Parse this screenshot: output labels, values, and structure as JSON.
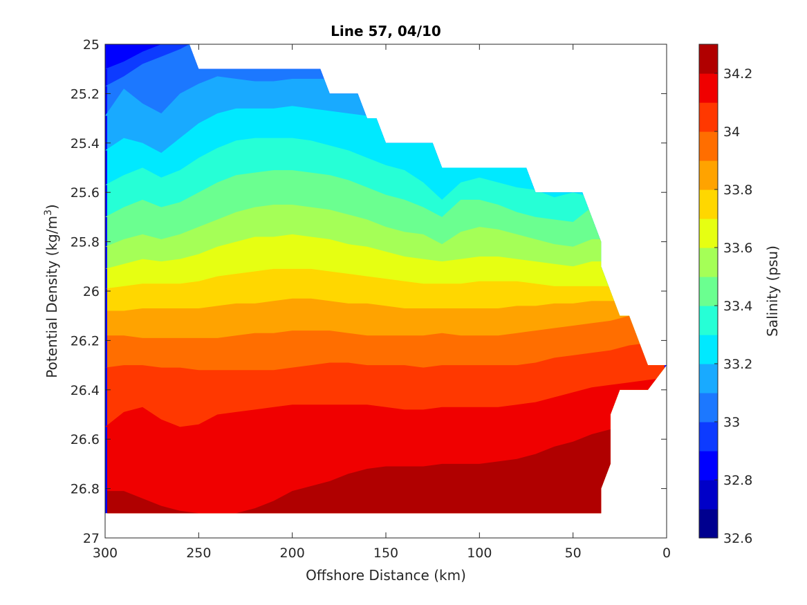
{
  "chart_data": {
    "type": "filled-contour",
    "title": "Line 57, 04/10",
    "xlabel": "Offshore Distance (km)",
    "ylabel_main": "Potential Density (kg/m",
    "ylabel_sup": "3",
    "ylabel_end": ")",
    "xlim": [
      0,
      300
    ],
    "x_reversed": true,
    "ylim": [
      25,
      27
    ],
    "y_reversed": true,
    "x_ticks": [
      300,
      250,
      200,
      150,
      100,
      50,
      0
    ],
    "x_tick_labels": [
      "300",
      "250",
      "200",
      "150",
      "100",
      "50",
      "0"
    ],
    "y_ticks": [
      25,
      25.2,
      25.4,
      25.6,
      25.8,
      26,
      26.2,
      26.4,
      26.6,
      26.8,
      27
    ],
    "y_tick_labels": [
      "25",
      "25.2",
      "25.4",
      "25.6",
      "25.8",
      "26",
      "26.2",
      "26.4",
      "26.6",
      "26.8",
      "27"
    ],
    "data_top_boundary": [
      [
        300,
        25
      ],
      [
        255,
        25
      ],
      [
        250,
        25.1
      ],
      [
        185,
        25.1
      ],
      [
        180,
        25.2
      ],
      [
        165,
        25.2
      ],
      [
        160,
        25.3
      ],
      [
        155,
        25.3
      ],
      [
        150,
        25.4
      ],
      [
        125,
        25.4
      ],
      [
        120,
        25.5
      ],
      [
        75,
        25.5
      ],
      [
        70,
        25.6
      ],
      [
        45,
        25.6
      ],
      [
        35,
        25.8
      ],
      [
        35,
        25.9
      ],
      [
        25,
        26.1
      ],
      [
        20,
        26.1
      ],
      [
        10,
        26.3
      ],
      [
        0,
        26.3
      ]
    ],
    "data_bottom_boundary": [
      [
        300,
        26.9
      ],
      [
        35,
        26.9
      ],
      [
        35,
        26.8
      ],
      [
        30,
        26.7
      ],
      [
        30,
        26.5
      ],
      [
        25,
        26.4
      ],
      [
        10,
        26.4
      ],
      [
        0,
        26.3
      ]
    ],
    "colorbar": {
      "label": "Salinity (psu)",
      "range": [
        32.6,
        34.3
      ],
      "ticks": [
        32.6,
        32.8,
        33,
        33.2,
        33.4,
        33.6,
        33.8,
        34,
        34.2
      ],
      "tick_labels": [
        "32.6",
        "32.8",
        "33",
        "33.2",
        "33.4",
        "33.6",
        "33.8",
        "34",
        "34.2"
      ],
      "levels": [
        32.6,
        32.7,
        32.8,
        32.9,
        33.0,
        33.1,
        33.2,
        33.3,
        33.4,
        33.5,
        33.6,
        33.7,
        33.8,
        33.9,
        34.0,
        34.1,
        34.2,
        34.3
      ],
      "colors": [
        "#00008f",
        "#0000c8",
        "#0000ff",
        "#0d3bff",
        "#1c78ff",
        "#19aaff",
        "#00e9ff",
        "#26ffd6",
        "#6bff90",
        "#a5ff57",
        "#e6ff12",
        "#ffd700",
        "#ffa300",
        "#ff6e00",
        "#ff3800",
        "#f00000",
        "#b00000"
      ]
    },
    "salinity_isolines_x": [
      300,
      290,
      280,
      270,
      260,
      250,
      240,
      230,
      220,
      210,
      200,
      190,
      180,
      170,
      160,
      150,
      140,
      130,
      120,
      110,
      100,
      90,
      80,
      70,
      60,
      50,
      40,
      30,
      20,
      10,
      0
    ],
    "salinity_isolines": [
      {
        "level": 32.9,
        "y": [
          25.1,
          25.07,
          25.03,
          25.0,
          24.98,
          24.98,
          24.98,
          24.98,
          24.98,
          24.98,
          24.98,
          24.98,
          24.98,
          24.98,
          24.98,
          24.98,
          24.98,
          24.98,
          24.98,
          24.98,
          24.98,
          24.98,
          24.98,
          24.98,
          24.98,
          24.98,
          24.98,
          24.98,
          24.98,
          24.98,
          24.98
        ]
      },
      {
        "level": 33.0,
        "y": [
          25.17,
          25.13,
          25.08,
          25.05,
          25.02,
          24.98,
          24.98,
          24.98,
          24.98,
          24.98,
          24.98,
          24.98,
          24.98,
          24.98,
          24.98,
          24.98,
          24.98,
          24.98,
          24.98,
          24.98,
          24.98,
          24.98,
          24.98,
          24.98,
          24.98,
          24.98,
          24.98,
          24.98,
          24.98,
          24.98,
          24.98
        ]
      },
      {
        "level": 33.1,
        "y": [
          25.29,
          25.18,
          25.24,
          25.28,
          25.2,
          25.16,
          25.13,
          25.14,
          25.15,
          25.15,
          25.14,
          25.14,
          25.14,
          25.15,
          25.16,
          25.16,
          25.15,
          25.13,
          25.12,
          25.12,
          25.12,
          25.12,
          25.12,
          25.12,
          25.12,
          25.12,
          25.12,
          25.12,
          25.12,
          25.12,
          25.12
        ]
      },
      {
        "level": 33.2,
        "y": [
          25.43,
          25.38,
          25.4,
          25.44,
          25.38,
          25.32,
          25.28,
          25.26,
          25.26,
          25.26,
          25.25,
          25.26,
          25.27,
          25.28,
          25.29,
          25.3,
          25.31,
          25.35,
          25.3,
          25.3,
          25.3,
          25.3,
          25.3,
          25.3,
          25.3,
          25.3,
          25.3,
          25.3,
          25.3,
          25.3,
          25.3
        ]
      },
      {
        "level": 33.3,
        "y": [
          25.57,
          25.53,
          25.5,
          25.54,
          25.51,
          25.46,
          25.42,
          25.39,
          25.38,
          25.38,
          25.38,
          25.39,
          25.41,
          25.43,
          25.46,
          25.49,
          25.51,
          25.56,
          25.63,
          25.56,
          25.54,
          25.56,
          25.58,
          25.59,
          25.62,
          25.6,
          25.62,
          25.62,
          25.62,
          25.62,
          25.62
        ]
      },
      {
        "level": 33.4,
        "y": [
          25.7,
          25.66,
          25.63,
          25.66,
          25.64,
          25.6,
          25.56,
          25.53,
          25.52,
          25.51,
          25.51,
          25.52,
          25.53,
          25.55,
          25.58,
          25.61,
          25.63,
          25.66,
          25.7,
          25.63,
          25.63,
          25.65,
          25.68,
          25.7,
          25.71,
          25.72,
          25.66,
          25.66,
          25.66,
          25.66,
          25.66
        ]
      },
      {
        "level": 33.5,
        "y": [
          25.82,
          25.79,
          25.77,
          25.79,
          25.77,
          25.74,
          25.71,
          25.68,
          25.66,
          25.65,
          25.65,
          25.66,
          25.67,
          25.69,
          25.71,
          25.74,
          25.76,
          25.77,
          25.81,
          25.76,
          25.74,
          25.75,
          25.77,
          25.79,
          25.81,
          25.82,
          25.79,
          25.79,
          25.79,
          25.79,
          25.79
        ]
      },
      {
        "level": 33.6,
        "y": [
          25.91,
          25.89,
          25.87,
          25.88,
          25.87,
          25.85,
          25.82,
          25.8,
          25.78,
          25.78,
          25.77,
          25.78,
          25.79,
          25.81,
          25.82,
          25.84,
          25.86,
          25.87,
          25.88,
          25.87,
          25.86,
          25.86,
          25.87,
          25.88,
          25.89,
          25.9,
          25.88,
          25.88,
          25.88,
          25.88,
          25.88
        ]
      },
      {
        "level": 33.7,
        "y": [
          25.99,
          25.98,
          25.97,
          25.97,
          25.97,
          25.96,
          25.94,
          25.93,
          25.92,
          25.91,
          25.91,
          25.91,
          25.92,
          25.93,
          25.94,
          25.95,
          25.96,
          25.97,
          25.97,
          25.97,
          25.96,
          25.96,
          25.96,
          25.97,
          25.98,
          25.98,
          25.98,
          25.98,
          25.98,
          25.98,
          25.98
        ]
      },
      {
        "level": 33.8,
        "y": [
          26.08,
          26.08,
          26.07,
          26.07,
          26.07,
          26.07,
          26.06,
          26.05,
          26.05,
          26.04,
          26.03,
          26.03,
          26.04,
          26.05,
          26.05,
          26.06,
          26.07,
          26.07,
          26.07,
          26.07,
          26.07,
          26.07,
          26.06,
          26.06,
          26.05,
          26.05,
          26.04,
          26.04,
          26.04,
          26.04,
          26.04
        ]
      },
      {
        "level": 33.9,
        "y": [
          26.18,
          26.18,
          26.19,
          26.19,
          26.19,
          26.19,
          26.19,
          26.18,
          26.17,
          26.17,
          26.16,
          26.16,
          26.16,
          26.17,
          26.18,
          26.18,
          26.18,
          26.18,
          26.17,
          26.18,
          26.18,
          26.18,
          26.17,
          26.16,
          26.15,
          26.14,
          26.13,
          26.12,
          26.1,
          26.1,
          26.1
        ]
      },
      {
        "level": 34.0,
        "y": [
          26.31,
          26.3,
          26.3,
          26.31,
          26.31,
          26.32,
          26.32,
          26.32,
          26.32,
          26.32,
          26.31,
          26.3,
          26.29,
          26.29,
          26.3,
          26.3,
          26.3,
          26.31,
          26.3,
          26.3,
          26.3,
          26.3,
          26.3,
          26.29,
          26.27,
          26.26,
          26.25,
          26.24,
          26.22,
          26.21,
          26.2
        ]
      },
      {
        "level": 34.1,
        "y": [
          26.55,
          26.49,
          26.47,
          26.52,
          26.55,
          26.54,
          26.5,
          26.49,
          26.48,
          26.47,
          26.46,
          26.46,
          26.46,
          26.46,
          26.46,
          26.47,
          26.48,
          26.48,
          26.47,
          26.47,
          26.47,
          26.47,
          26.46,
          26.45,
          26.43,
          26.41,
          26.39,
          26.38,
          26.37,
          26.36,
          26.35
        ]
      },
      {
        "level": 34.2,
        "y": [
          26.81,
          26.81,
          26.84,
          26.87,
          26.89,
          26.9,
          26.9,
          26.9,
          26.88,
          26.85,
          26.81,
          26.79,
          26.77,
          26.74,
          26.72,
          26.71,
          26.71,
          26.71,
          26.7,
          26.7,
          26.7,
          26.69,
          26.68,
          26.66,
          26.63,
          26.61,
          26.58,
          26.56,
          26.5,
          26.45,
          26.4
        ]
      }
    ]
  }
}
